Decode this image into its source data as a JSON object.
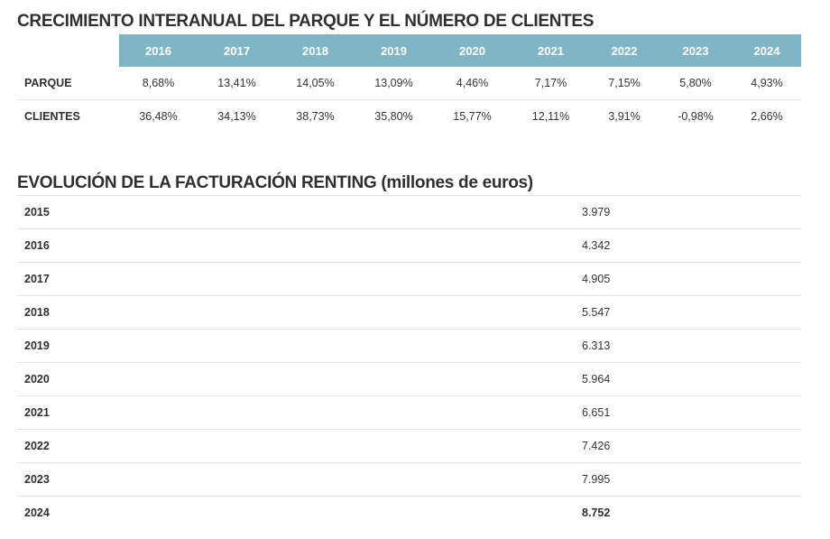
{
  "growth_table": {
    "title": "CRECIMIENTO INTERANUAL DEL PARQUE Y EL NÚMERO DE CLIENTES",
    "header_color": "#7fb6c6",
    "years": [
      "2016",
      "2017",
      "2018",
      "2019",
      "2020",
      "2021",
      "2022",
      "2023",
      "2024"
    ],
    "rows": [
      {
        "label": "PARQUE",
        "values": [
          "8,68%",
          "13,41%",
          "14,05%",
          "13,09%",
          "4,46%",
          "7,17%",
          "7,15%",
          "5,80%",
          "4,93%"
        ]
      },
      {
        "label": "CLIENTES",
        "values": [
          "36,48%",
          "34,13%",
          "38,73%",
          "35,80%",
          "15,77%",
          "12,11%",
          "3,91%",
          "-0,98%",
          "2,66%"
        ]
      }
    ]
  },
  "billing_table": {
    "title": "EVOLUCIÓN DE LA FACTURACIÓN RENTING (millones de euros)",
    "rows": [
      {
        "year": "2015",
        "value": "3.979"
      },
      {
        "year": "2016",
        "value": "4.342"
      },
      {
        "year": "2017",
        "value": "4.905"
      },
      {
        "year": "2018",
        "value": "5.547"
      },
      {
        "year": "2019",
        "value": "6.313"
      },
      {
        "year": "2020",
        "value": "5.964"
      },
      {
        "year": "2021",
        "value": "6.651"
      },
      {
        "year": "2022",
        "value": "7.426"
      },
      {
        "year": "2023",
        "value": "7.995"
      },
      {
        "year": "2024",
        "value": "8.752"
      }
    ]
  }
}
